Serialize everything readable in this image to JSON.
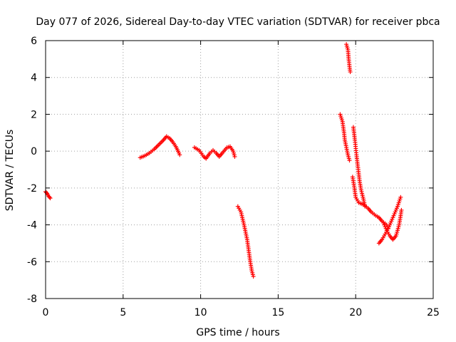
{
  "chart_data": {
    "type": "scatter",
    "title": "Day 077 of 2026, Sidereal Day-to-day VTEC variation (SDTVAR) for receiver pbca",
    "xlabel": "GPS time / hours",
    "ylabel": "SDTVAR / TECUs",
    "xlim": [
      0,
      25
    ],
    "ylim": [
      -8,
      6
    ],
    "xticks": [
      "0",
      "5",
      "10",
      "15",
      "20",
      "25"
    ],
    "yticks": [
      "-8",
      "-6",
      "-4",
      "-2",
      "0",
      "2",
      "4",
      "6"
    ],
    "grid": true,
    "marker": "plus",
    "color": "#ff0000",
    "series": [
      {
        "segments": [
          [
            [
              0.0,
              -2.2
            ],
            [
              0.1,
              -2.3
            ],
            [
              0.2,
              -2.45
            ],
            [
              0.3,
              -2.55
            ]
          ],
          [
            [
              6.1,
              -0.35
            ],
            [
              6.4,
              -0.25
            ],
            [
              6.7,
              -0.1
            ],
            [
              7.0,
              0.1
            ],
            [
              7.3,
              0.35
            ],
            [
              7.6,
              0.6
            ],
            [
              7.8,
              0.8
            ],
            [
              8.0,
              0.7
            ],
            [
              8.2,
              0.5
            ],
            [
              8.4,
              0.25
            ],
            [
              8.6,
              -0.1
            ],
            [
              8.65,
              -0.2
            ]
          ],
          [
            [
              9.6,
              0.2
            ],
            [
              9.9,
              0.05
            ],
            [
              10.2,
              -0.3
            ],
            [
              10.35,
              -0.4
            ],
            [
              10.6,
              -0.1
            ],
            [
              10.8,
              0.05
            ],
            [
              11.0,
              -0.1
            ],
            [
              11.2,
              -0.3
            ],
            [
              11.4,
              -0.1
            ],
            [
              11.7,
              0.2
            ],
            [
              11.9,
              0.25
            ],
            [
              12.1,
              0.0
            ],
            [
              12.2,
              -0.3
            ]
          ],
          [
            [
              12.4,
              -3.0
            ],
            [
              12.6,
              -3.3
            ],
            [
              12.8,
              -4.0
            ],
            [
              13.0,
              -4.8
            ],
            [
              13.1,
              -5.4
            ],
            [
              13.2,
              -6.0
            ],
            [
              13.3,
              -6.5
            ],
            [
              13.4,
              -6.8
            ]
          ],
          [
            [
              19.4,
              5.8
            ],
            [
              19.5,
              5.5
            ],
            [
              19.55,
              5.0
            ],
            [
              19.6,
              4.6
            ],
            [
              19.65,
              4.3
            ]
          ],
          [
            [
              19.0,
              2.0
            ],
            [
              19.15,
              1.6
            ],
            [
              19.25,
              1.0
            ],
            [
              19.3,
              0.6
            ],
            [
              19.4,
              0.2
            ],
            [
              19.5,
              -0.2
            ],
            [
              19.6,
              -0.5
            ]
          ],
          [
            [
              19.85,
              1.3
            ],
            [
              19.95,
              0.6
            ],
            [
              20.05,
              -0.2
            ],
            [
              20.15,
              -0.9
            ],
            [
              20.25,
              -1.6
            ],
            [
              20.35,
              -2.1
            ],
            [
              20.5,
              -2.6
            ],
            [
              20.6,
              -3.0
            ]
          ],
          [
            [
              19.8,
              -1.4
            ],
            [
              19.9,
              -1.9
            ],
            [
              20.0,
              -2.5
            ],
            [
              20.2,
              -2.8
            ],
            [
              20.5,
              -2.9
            ],
            [
              20.8,
              -3.1
            ],
            [
              21.0,
              -3.3
            ],
            [
              21.3,
              -3.5
            ],
            [
              21.5,
              -3.6
            ],
            [
              21.7,
              -3.8
            ],
            [
              22.0,
              -4.0
            ],
            [
              22.1,
              -4.2
            ]
          ],
          [
            [
              21.5,
              -5.0
            ],
            [
              21.7,
              -4.8
            ],
            [
              21.9,
              -4.5
            ],
            [
              22.1,
              -4.2
            ],
            [
              22.3,
              -3.8
            ],
            [
              22.5,
              -3.4
            ],
            [
              22.7,
              -3.0
            ],
            [
              22.9,
              -2.5
            ]
          ],
          [
            [
              21.8,
              -3.9
            ],
            [
              22.0,
              -4.3
            ],
            [
              22.2,
              -4.6
            ],
            [
              22.4,
              -4.8
            ],
            [
              22.6,
              -4.6
            ],
            [
              22.7,
              -4.3
            ],
            [
              22.8,
              -4.0
            ],
            [
              22.9,
              -3.5
            ],
            [
              22.95,
              -3.2
            ]
          ]
        ]
      }
    ]
  }
}
